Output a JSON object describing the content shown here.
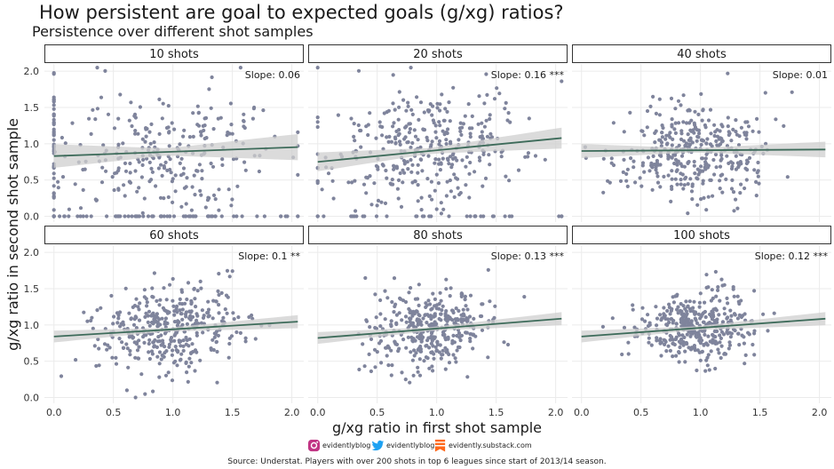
{
  "header": {
    "title": "How persistent are goal to expected goals (g/xg) ratios?",
    "subtitle": "Persistence over different shot samples"
  },
  "chart_data": {
    "type": "scatter",
    "xlabel": "g/xg ratio in first shot sample",
    "ylabel": "g/xg ratio in second shot sample",
    "xlim": [
      -0.08,
      2.1
    ],
    "ylim": [
      -0.08,
      2.1
    ],
    "x_ticks": [
      "0.0",
      "0.5",
      "1.0",
      "1.5",
      "2.0"
    ],
    "y_ticks": [
      "0.0",
      "0.5",
      "1.0",
      "1.5",
      "2.0"
    ],
    "panels": [
      {
        "label": "10 shots",
        "slope_label": "Slope: 0.06",
        "slope": 0.06,
        "fit_intercept": 0.83,
        "se_band": 0.1,
        "spread": 0.45,
        "zero_frac": 0.28
      },
      {
        "label": "20 shots",
        "slope_label": "Slope: 0.16 ***",
        "slope": 0.16,
        "fit_intercept": 0.75,
        "se_band": 0.08,
        "spread": 0.4,
        "zero_frac": 0.1
      },
      {
        "label": "40 shots",
        "slope_label": "Slope: 0.01",
        "slope": 0.01,
        "fit_intercept": 0.9,
        "se_band": 0.06,
        "spread": 0.33,
        "zero_frac": 0.0
      },
      {
        "label": "60 shots",
        "slope_label": "Slope: 0.1 **",
        "slope": 0.1,
        "fit_intercept": 0.84,
        "se_band": 0.05,
        "spread": 0.3,
        "zero_frac": 0.0
      },
      {
        "label": "80 shots",
        "slope_label": "Slope: 0.13 ***",
        "slope": 0.13,
        "fit_intercept": 0.82,
        "se_band": 0.05,
        "spread": 0.27,
        "zero_frac": 0.0
      },
      {
        "label": "100 shots",
        "slope_label": "Slope: 0.12 ***",
        "slope": 0.12,
        "fit_intercept": 0.84,
        "se_band": 0.05,
        "spread": 0.24,
        "zero_frac": 0.0
      }
    ],
    "colors": {
      "point": "#7f849c",
      "line": "#3d6b5a",
      "band": "#cfcfcf",
      "strip_fill": "#ffffff",
      "strip_border": "#333333",
      "grid": "#ebebeb"
    }
  },
  "footer": {
    "instagram": "evidentlyblog",
    "twitter": "evidentlyblog",
    "substack": "evidently.substack.com",
    "source": "Source: Understat. Players with over 200 shots in top 6 leagues since start of 2013/14 season."
  }
}
